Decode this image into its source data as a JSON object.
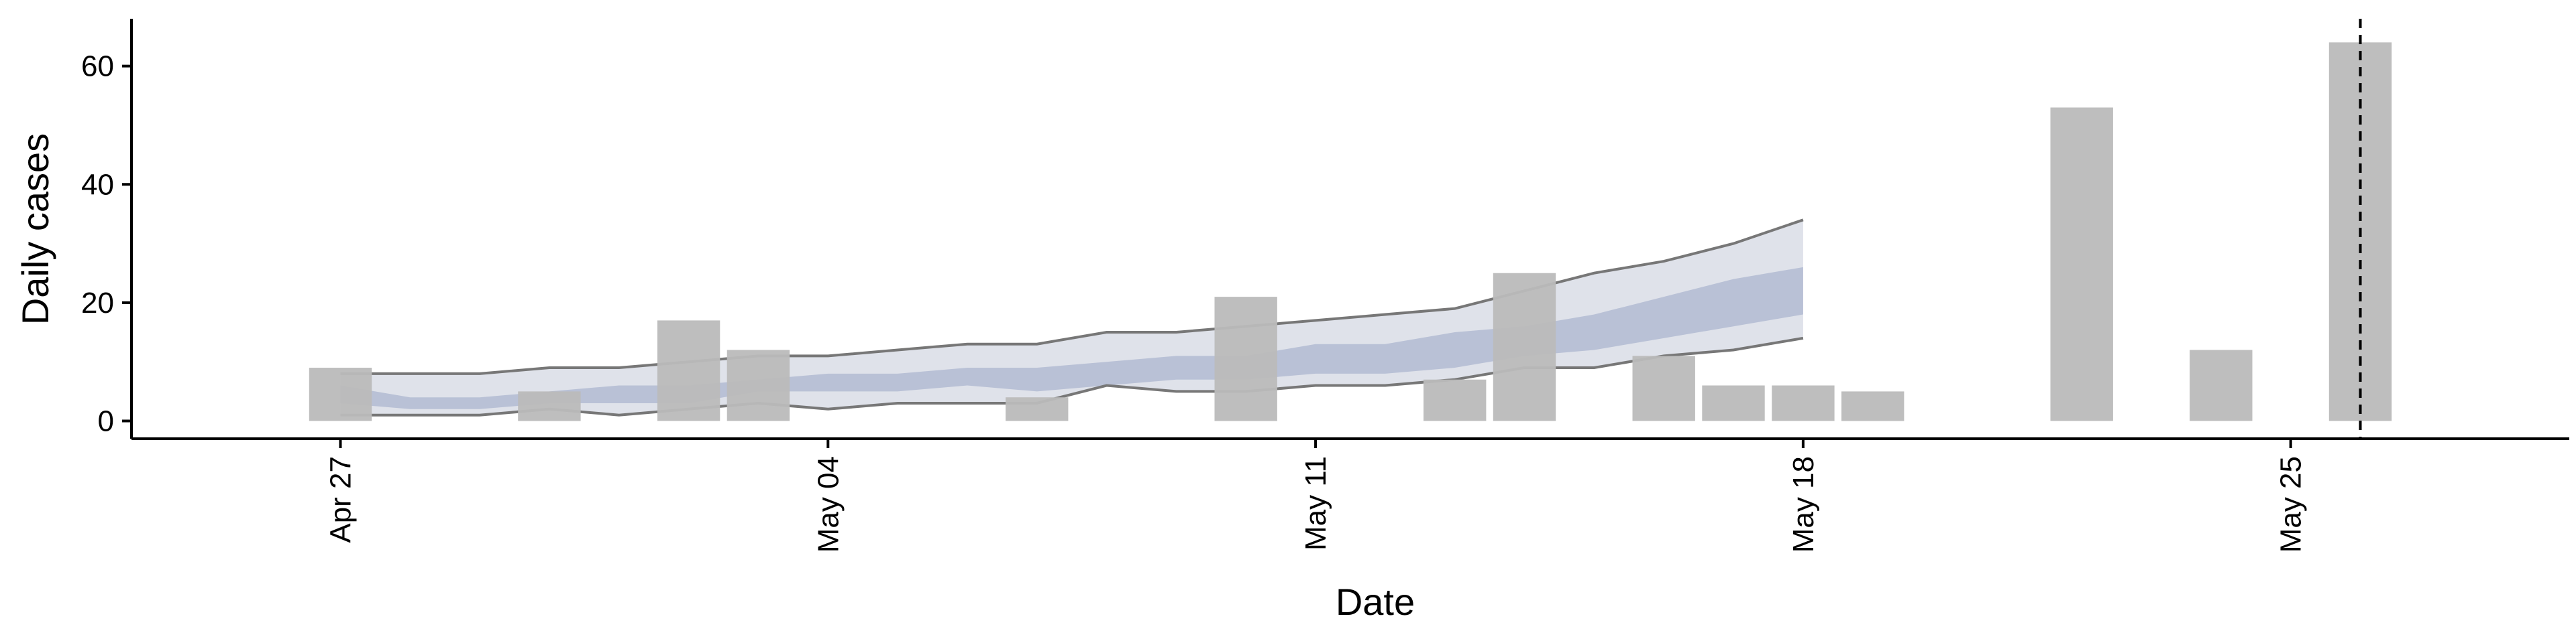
{
  "chart_data": {
    "type": "bar",
    "title": "",
    "xlabel": "Date",
    "ylabel": "Daily cases",
    "x_type": "date",
    "xlim": [
      "2020-04-24",
      "2020-05-29"
    ],
    "ylim": [
      -3,
      68
    ],
    "x_ticks": [
      {
        "date": "2020-04-27",
        "label": "Apr 27"
      },
      {
        "date": "2020-05-04",
        "label": "May 04"
      },
      {
        "date": "2020-05-11",
        "label": "May 11"
      },
      {
        "date": "2020-05-18",
        "label": "May 18"
      },
      {
        "date": "2020-05-25",
        "label": "May 25"
      }
    ],
    "y_ticks": [
      0,
      20,
      40,
      60
    ],
    "grid": false,
    "legend": "none",
    "bars": {
      "name": "",
      "color": "#bababa",
      "points": [
        {
          "date": "2020-04-27",
          "value": 9
        },
        {
          "date": "2020-04-30",
          "value": 5
        },
        {
          "date": "2020-05-02",
          "value": 17
        },
        {
          "date": "2020-05-03",
          "value": 12
        },
        {
          "date": "2020-05-07",
          "value": 4
        },
        {
          "date": "2020-05-10",
          "value": 21
        },
        {
          "date": "2020-05-13",
          "value": 7
        },
        {
          "date": "2020-05-14",
          "value": 25
        },
        {
          "date": "2020-05-16",
          "value": 11
        },
        {
          "date": "2020-05-17",
          "value": 6
        },
        {
          "date": "2020-05-18",
          "value": 6
        },
        {
          "date": "2020-05-19",
          "value": 5
        },
        {
          "date": "2020-05-22",
          "value": 53
        },
        {
          "date": "2020-05-24",
          "value": 12
        },
        {
          "date": "2020-05-26",
          "value": 64
        }
      ]
    },
    "estimate_band": {
      "dates": [
        "2020-04-27",
        "2020-04-28",
        "2020-04-29",
        "2020-04-30",
        "2020-05-01",
        "2020-05-02",
        "2020-05-03",
        "2020-05-04",
        "2020-05-05",
        "2020-05-06",
        "2020-05-07",
        "2020-05-08",
        "2020-05-09",
        "2020-05-10",
        "2020-05-11",
        "2020-05-12",
        "2020-05-13",
        "2020-05-14",
        "2020-05-15",
        "2020-05-16",
        "2020-05-17",
        "2020-05-18"
      ],
      "outer_lower": [
        1,
        1,
        1,
        2,
        1,
        2,
        3,
        2,
        3,
        3,
        3,
        6,
        5,
        5,
        6,
        6,
        7,
        9,
        9,
        11,
        12,
        14
      ],
      "outer_upper": [
        8,
        8,
        8,
        9,
        9,
        10,
        11,
        11,
        12,
        13,
        13,
        15,
        15,
        16,
        17,
        18,
        19,
        22,
        25,
        27,
        30,
        34
      ],
      "inner_lower": [
        3,
        2,
        2,
        3,
        3,
        3,
        5,
        5,
        5,
        6,
        5,
        6,
        7,
        7,
        8,
        8,
        9,
        11,
        12,
        14,
        16,
        18
      ],
      "inner_upper": [
        6,
        4,
        4,
        5,
        6,
        6,
        7,
        8,
        8,
        9,
        9,
        10,
        11,
        11,
        13,
        13,
        15,
        16,
        18,
        21,
        24,
        26
      ],
      "outer_color": "#dfe2ea",
      "inner_color": "#b9c1d6",
      "line_color": "#777777"
    },
    "vline": {
      "date": "2020-05-26",
      "style": "dashed",
      "color": "#000000"
    }
  }
}
